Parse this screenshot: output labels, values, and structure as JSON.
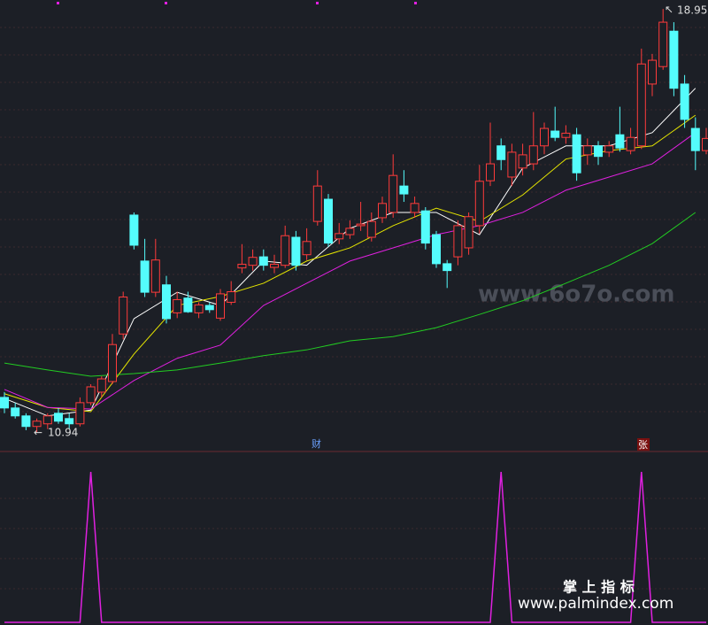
{
  "chart_data": [
    {
      "type": "candlestick",
      "open": [
        11.6,
        11.4,
        11.25,
        11.05,
        11.1,
        11.3,
        11.2,
        11.1,
        11.5,
        11.7,
        11.9,
        12.8,
        15.05,
        14.18,
        13.59,
        13.73,
        13.2,
        13.48,
        13.2,
        13.34,
        13.1,
        13.4,
        14.05,
        14.1,
        14.26,
        14.06,
        14.1,
        14.63,
        14.3,
        14.93,
        15.35,
        14.6,
        14.68,
        14.85,
        14.63,
        15.0,
        15.1,
        15.6,
        15.1,
        15.13,
        14.68,
        14.13,
        14.26,
        14.43,
        14.85,
        15.7,
        16.36,
        15.77,
        15.94,
        16.02,
        16.36,
        16.64,
        16.52,
        16.57,
        16.19,
        16.36,
        16.24,
        16.57,
        16.27,
        16.36,
        17.53,
        17.86,
        18.53,
        17.53,
        16.69,
        16.27
      ],
      "high": [
        11.7,
        11.5,
        11.3,
        11.2,
        11.3,
        11.4,
        11.3,
        11.6,
        11.85,
        12.0,
        12.8,
        13.6,
        15.1,
        14.6,
        14.6,
        13.9,
        13.6,
        13.6,
        13.4,
        13.4,
        13.65,
        13.8,
        14.5,
        14.4,
        14.4,
        14.3,
        14.85,
        14.75,
        14.8,
        15.9,
        15.45,
        14.9,
        14.95,
        15.3,
        15.1,
        15.4,
        16.2,
        15.9,
        15.4,
        15.2,
        14.75,
        14.2,
        14.95,
        15.1,
        16.0,
        16.8,
        16.5,
        16.4,
        16.4,
        17.0,
        16.8,
        17.1,
        16.75,
        16.7,
        16.5,
        16.45,
        16.45,
        17.1,
        16.7,
        18.2,
        18.1,
        18.95,
        18.7,
        17.7,
        16.9,
        16.7
      ],
      "low": [
        11.3,
        11.2,
        10.98,
        10.94,
        11.0,
        11.1,
        11.0,
        11.05,
        11.45,
        11.6,
        11.85,
        12.7,
        14.4,
        13.5,
        13.5,
        13.0,
        13.1,
        13.2,
        13.1,
        13.2,
        13.05,
        13.35,
        13.95,
        14.0,
        14.0,
        13.95,
        14.05,
        14.0,
        14.2,
        14.85,
        14.45,
        14.5,
        14.6,
        14.75,
        14.55,
        14.9,
        15.0,
        15.3,
        15.0,
        14.4,
        14.05,
        13.67,
        14.1,
        14.3,
        14.7,
        15.6,
        15.9,
        15.6,
        15.8,
        15.9,
        16.2,
        16.45,
        16.4,
        15.7,
        16.0,
        16.0,
        16.15,
        16.25,
        16.2,
        16.3,
        17.3,
        17.8,
        17.3,
        16.7,
        15.9,
        16.2
      ],
      "close": [
        11.4,
        11.25,
        11.05,
        11.15,
        11.25,
        11.15,
        11.1,
        11.5,
        11.8,
        11.95,
        12.6,
        13.5,
        14.48,
        13.59,
        14.2,
        13.09,
        13.45,
        13.22,
        13.35,
        13.26,
        13.56,
        13.6,
        14.12,
        14.25,
        14.1,
        14.12,
        14.66,
        14.1,
        14.55,
        15.6,
        14.52,
        14.7,
        14.8,
        14.88,
        14.93,
        15.27,
        15.8,
        15.45,
        15.27,
        14.52,
        14.13,
        14.0,
        14.85,
        15.02,
        15.69,
        16.02,
        16.1,
        16.24,
        16.19,
        16.36,
        16.69,
        16.52,
        16.6,
        15.85,
        16.36,
        16.16,
        16.36,
        16.32,
        16.52,
        17.91,
        17.98,
        18.7,
        17.45,
        16.86,
        16.27,
        16.5
      ],
      "up_color": "#ff3b3b",
      "down_color": "#54fcfc",
      "ylim": [
        10.61,
        19.12
      ],
      "series": [
        {
          "color": "#ffffff",
          "x": [
            0,
            4,
            8,
            12,
            16,
            20,
            24,
            28,
            32,
            36,
            40,
            44,
            48,
            52,
            56,
            60,
            64
          ],
          "values": [
            11.58,
            11.25,
            11.36,
            13.09,
            13.59,
            13.34,
            14.18,
            14.1,
            14.8,
            15.1,
            15.1,
            14.68,
            15.94,
            16.36,
            16.36,
            16.61,
            17.45
          ]
        },
        {
          "color": "#e6e600",
          "x": [
            0,
            4,
            8,
            12,
            16,
            20,
            24,
            28,
            32,
            36,
            40,
            44,
            48,
            52,
            56,
            60,
            64
          ],
          "values": [
            11.67,
            11.41,
            11.33,
            12.42,
            13.34,
            13.51,
            13.76,
            14.18,
            14.43,
            14.85,
            15.18,
            14.93,
            15.43,
            16.11,
            16.27,
            16.36,
            16.94
          ]
        },
        {
          "color": "#e020e0",
          "x": [
            0,
            4,
            8,
            12,
            16,
            20,
            24,
            28,
            32,
            36,
            40,
            44,
            48,
            52,
            56,
            60,
            64
          ],
          "values": [
            11.75,
            11.41,
            11.38,
            11.92,
            12.34,
            12.59,
            13.34,
            13.76,
            14.18,
            14.43,
            14.68,
            14.85,
            15.1,
            15.52,
            15.77,
            16.02,
            16.61
          ]
        },
        {
          "color": "#22cc22",
          "x": [
            0,
            4,
            8,
            12,
            16,
            20,
            24,
            28,
            32,
            36,
            40,
            44,
            48,
            52,
            56,
            60,
            64
          ],
          "values": [
            12.25,
            12.12,
            12.0,
            12.05,
            12.12,
            12.25,
            12.39,
            12.5,
            12.67,
            12.75,
            12.92,
            13.17,
            13.43,
            13.76,
            14.1,
            14.51,
            15.1
          ]
        }
      ],
      "markers": [
        "财",
        "张"
      ]
    },
    {
      "type": "line",
      "color": "#e020e0",
      "ylim": [
        0,
        1
      ],
      "values": [
        0,
        0,
        0,
        0,
        0,
        0,
        0,
        0,
        1,
        0,
        0,
        0,
        0,
        0,
        0,
        0,
        0,
        0,
        0,
        0,
        0,
        0,
        0,
        0,
        0,
        0,
        0,
        0,
        0,
        0,
        0,
        0,
        0,
        0,
        0,
        0,
        0,
        0,
        0,
        0,
        0,
        0,
        0,
        0,
        0,
        0,
        1,
        0,
        0,
        0,
        0,
        0,
        0,
        0,
        0,
        0,
        0,
        0,
        0,
        1,
        0,
        0,
        0,
        0,
        0,
        0
      ]
    }
  ],
  "watermarks": [
    "www.6o7o.com",
    "掌 上 指 标",
    "www.palmindex.com"
  ]
}
